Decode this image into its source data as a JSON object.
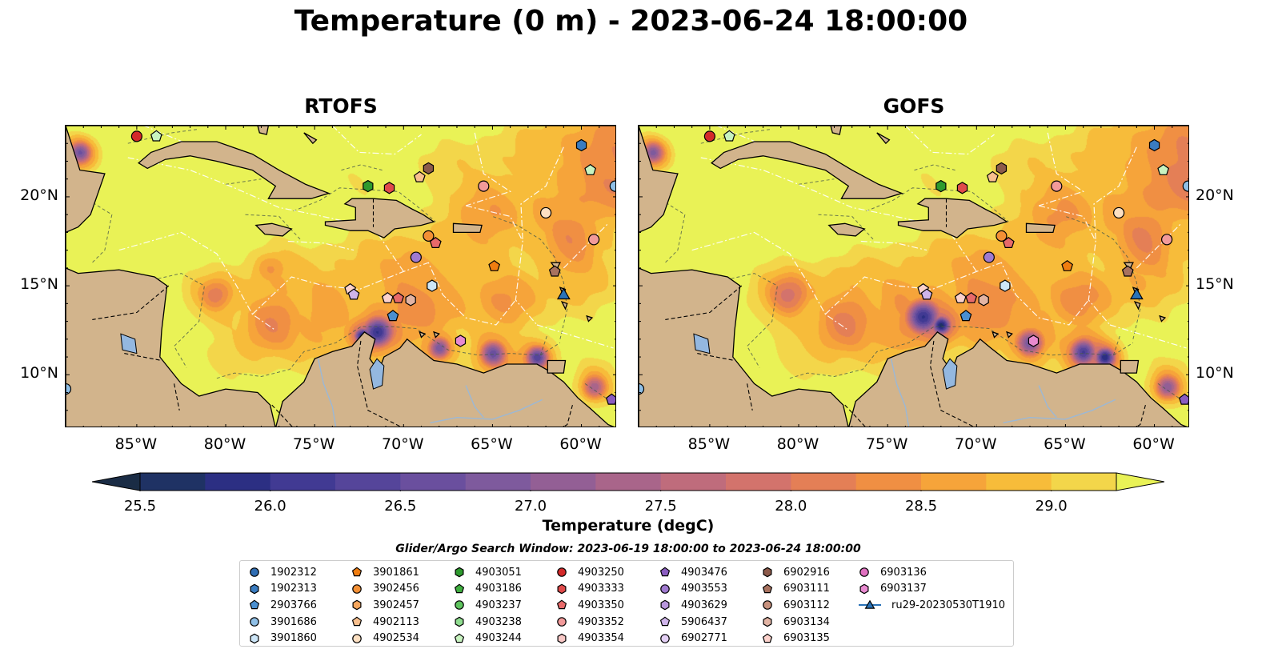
{
  "title": "Temperature (0 m) - 2023-06-24 18:00:00",
  "panels": [
    {
      "title": "RTOFS",
      "variant": "rtofs"
    },
    {
      "title": "GOFS",
      "variant": "gofs"
    }
  ],
  "axes": {
    "lon_range": [
      -89,
      -58
    ],
    "lat_range": [
      7,
      24
    ],
    "lon_ticks": [
      "85°W",
      "80°W",
      "75°W",
      "70°W",
      "65°W",
      "60°W"
    ],
    "lat_ticks": [
      "20°N",
      "15°N",
      "10°N"
    ]
  },
  "colorbar": {
    "label": "Temperature (degC)",
    "ticks": [
      "25.5",
      "26.0",
      "26.5",
      "27.0",
      "27.5",
      "28.0",
      "28.5",
      "29.0"
    ],
    "range": [
      25.5,
      29.25
    ],
    "colors": [
      "#1a2c45",
      "#1f3264",
      "#2c2f83",
      "#413a93",
      "#55459a",
      "#6a4f9e",
      "#7e5a9d",
      "#935f95",
      "#a9658a",
      "#bf6c7c",
      "#d3736c",
      "#e47f56",
      "#f08f43",
      "#f6a43a",
      "#f7bc3a",
      "#f3d64a",
      "#e9f256"
    ]
  },
  "search_window": "Glider/Argo Search Window: 2023-06-19 18:00:00 to 2023-06-24 18:00:00",
  "legend": [
    {
      "label": "1902312",
      "marker": "circle",
      "color": "#2f6db3"
    },
    {
      "label": "1902313",
      "marker": "hexagon",
      "color": "#3a7cc0"
    },
    {
      "label": "2903766",
      "marker": "pentagon",
      "color": "#4a8fd0"
    },
    {
      "label": "3901686",
      "marker": "circle",
      "color": "#8fbfe6"
    },
    {
      "label": "3901860",
      "marker": "hexagon",
      "color": "#cde6f8"
    },
    {
      "label": "3901861",
      "marker": "pentagon",
      "color": "#f07d10"
    },
    {
      "label": "3902456",
      "marker": "circle",
      "color": "#f39035"
    },
    {
      "label": "3902457",
      "marker": "hexagon",
      "color": "#f7a75e"
    },
    {
      "label": "4902113",
      "marker": "pentagon",
      "color": "#f9c08e"
    },
    {
      "label": "4902534",
      "marker": "circle",
      "color": "#fde0c2"
    },
    {
      "label": "4903051",
      "marker": "hexagon",
      "color": "#2e9a2e"
    },
    {
      "label": "4903186",
      "marker": "pentagon",
      "color": "#3fae3f"
    },
    {
      "label": "4903237",
      "marker": "circle",
      "color": "#5fc45f"
    },
    {
      "label": "4903238",
      "marker": "hexagon",
      "color": "#8fdc8f"
    },
    {
      "label": "4903244",
      "marker": "pentagon",
      "color": "#c8f3c0"
    },
    {
      "label": "4903250",
      "marker": "circle",
      "color": "#d42a2a"
    },
    {
      "label": "4903333",
      "marker": "hexagon",
      "color": "#e04a4a"
    },
    {
      "label": "4903350",
      "marker": "pentagon",
      "color": "#e86a6a"
    },
    {
      "label": "4903352",
      "marker": "circle",
      "color": "#f29a9a"
    },
    {
      "label": "4903354",
      "marker": "hexagon",
      "color": "#f8c8c6"
    },
    {
      "label": "4903476",
      "marker": "pentagon",
      "color": "#8a5cc0"
    },
    {
      "label": "4903553",
      "marker": "circle",
      "color": "#a07ad0"
    },
    {
      "label": "4903629",
      "marker": "hexagon",
      "color": "#b896dc"
    },
    {
      "label": "5906437",
      "marker": "pentagon",
      "color": "#cfb4ea"
    },
    {
      "label": "6902771",
      "marker": "circle",
      "color": "#e4d0f6"
    },
    {
      "label": "6902916",
      "marker": "hexagon",
      "color": "#8c5a4a"
    },
    {
      "label": "6903111",
      "marker": "pentagon",
      "color": "#a8725f"
    },
    {
      "label": "6903112",
      "marker": "circle",
      "color": "#c8927e"
    },
    {
      "label": "6903134",
      "marker": "hexagon",
      "color": "#e2b4a4"
    },
    {
      "label": "6903135",
      "marker": "pentagon",
      "color": "#fcd2cc"
    },
    {
      "label": "6903136",
      "marker": "circle",
      "color": "#e070c0"
    },
    {
      "label": "6903137",
      "marker": "hexagon",
      "color": "#e88ad0"
    },
    {
      "label": "ru29-20230530T1910",
      "marker": "triangle-line",
      "color": "#2a73b8"
    }
  ],
  "floats": [
    {
      "id": "4903250",
      "lon": -85.0,
      "lat": 23.4
    },
    {
      "id": "4903244",
      "lon": -83.9,
      "lat": 23.4
    },
    {
      "id": "1902313",
      "lon": -60.0,
      "lat": 22.9
    },
    {
      "id": "4903244",
      "lon": -59.5,
      "lat": 21.5
    },
    {
      "id": "6902916",
      "lon": -68.6,
      "lat": 21.6
    },
    {
      "id": "4902113",
      "lon": -69.1,
      "lat": 21.1
    },
    {
      "id": "4903051",
      "lon": -72.0,
      "lat": 20.6
    },
    {
      "id": "4903333",
      "lon": -70.8,
      "lat": 20.5
    },
    {
      "id": "4903352",
      "lon": -65.5,
      "lat": 20.6
    },
    {
      "id": "3901686",
      "lon": -58.1,
      "lat": 20.6
    },
    {
      "id": "4902534",
      "lon": -62.0,
      "lat": 19.1
    },
    {
      "id": "3902456",
      "lon": -68.6,
      "lat": 17.8
    },
    {
      "id": "4903350",
      "lon": -68.2,
      "lat": 17.4
    },
    {
      "id": "4903352",
      "lon": -59.3,
      "lat": 17.6
    },
    {
      "id": "4903553",
      "lon": -69.3,
      "lat": 16.6
    },
    {
      "id": "3901861",
      "lon": -64.9,
      "lat": 16.1
    },
    {
      "id": "6903111",
      "lon": -61.5,
      "lat": 15.8
    },
    {
      "id": "3901860",
      "lon": -68.4,
      "lat": 15.0
    },
    {
      "id": "6903135",
      "lon": -73.0,
      "lat": 14.8
    },
    {
      "id": "5906437",
      "lon": -72.8,
      "lat": 14.5
    },
    {
      "id": "6903135",
      "lon": -70.9,
      "lat": 14.3
    },
    {
      "id": "4903350",
      "lon": -70.3,
      "lat": 14.3
    },
    {
      "id": "6903134",
      "lon": -69.6,
      "lat": 14.2
    },
    {
      "id": "2903766",
      "lon": -70.6,
      "lat": 13.3
    },
    {
      "id": "6903137",
      "lon": -66.8,
      "lat": 11.9
    },
    {
      "id": "4903476",
      "lon": -58.3,
      "lat": 8.6
    },
    {
      "id": "3901686",
      "lon": -89.0,
      "lat": 9.2
    }
  ],
  "glider": {
    "id": "ru29-20230530T1910",
    "lon": -61.0,
    "lat": 14.5
  }
}
